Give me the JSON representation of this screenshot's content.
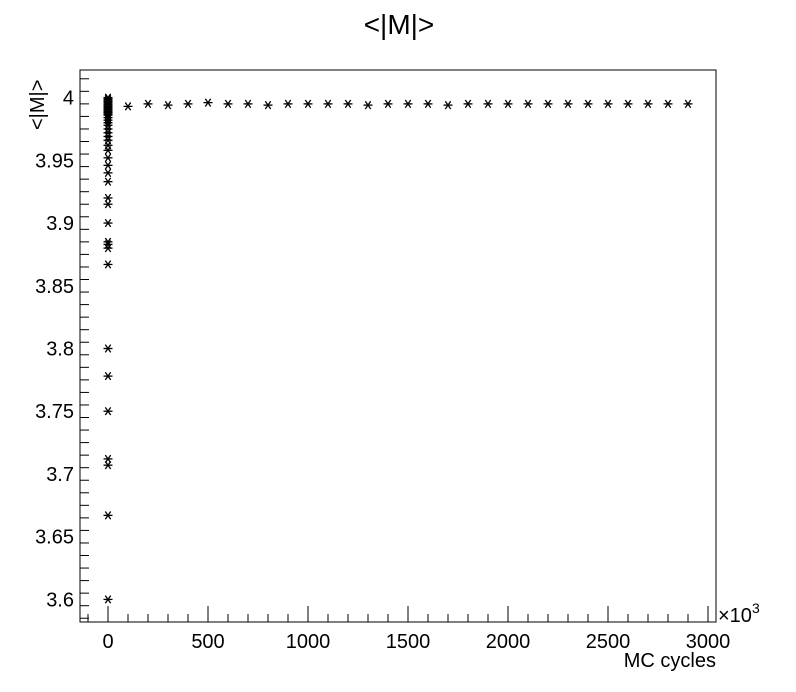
{
  "chart_data": {
    "type": "scatter",
    "title": "<|M|>",
    "xlabel": "MC cycles",
    "ylabel": "<|M|>",
    "x_multiplier_label": "×10",
    "x_multiplier_exponent": "3",
    "xlim": [
      -140,
      3040
    ],
    "ylim": [
      3.582,
      4.022
    ],
    "x_ticks": [
      0,
      500,
      1000,
      1500,
      2000,
      2500,
      3000
    ],
    "x_tick_labels": [
      "0",
      "500",
      "1000",
      "1500",
      "2000",
      "2500",
      "3000"
    ],
    "y_ticks": [
      3.6,
      3.65,
      3.7,
      3.75,
      3.8,
      3.85,
      3.9,
      3.95,
      4.0
    ],
    "y_tick_labels": [
      "3.6",
      "3.65",
      "3.7",
      "3.75",
      "3.8",
      "3.85",
      "3.9",
      "3.95",
      "4"
    ],
    "marker": "asterisk",
    "grid": false,
    "series": [
      {
        "x": [
          0,
          0,
          0,
          0,
          0,
          0,
          0,
          0,
          0,
          0,
          0,
          0,
          0,
          0,
          0,
          0,
          0,
          0,
          0,
          0,
          0,
          0,
          0,
          0,
          0,
          0,
          0,
          0,
          0,
          0,
          0,
          0,
          0,
          0,
          0,
          0,
          0,
          0,
          0,
          0,
          0,
          0,
          0,
          100,
          200,
          300,
          400,
          500,
          600,
          700,
          800,
          900,
          1000,
          1100,
          1200,
          1300,
          1400,
          1500,
          1600,
          1700,
          1800,
          1900,
          2000,
          2100,
          2200,
          2300,
          2400,
          2500,
          2600,
          2700,
          2800,
          2900
        ],
        "y": [
          3.6,
          3.667,
          3.707,
          3.712,
          3.75,
          3.778,
          3.8,
          3.867,
          3.88,
          3.883,
          3.885,
          3.9,
          3.915,
          3.92,
          3.933,
          3.94,
          3.946,
          3.952,
          3.958,
          3.962,
          3.966,
          3.969,
          3.972,
          3.975,
          3.978,
          3.98,
          3.982,
          3.984,
          3.986,
          3.987,
          3.988,
          3.989,
          3.99,
          3.991,
          3.992,
          3.993,
          3.994,
          3.995,
          3.996,
          3.997,
          3.998,
          3.999,
          4.0,
          3.993,
          3.995,
          3.994,
          3.995,
          3.996,
          3.995,
          3.995,
          3.994,
          3.995,
          3.995,
          3.995,
          3.995,
          3.994,
          3.995,
          3.995,
          3.995,
          3.994,
          3.995,
          3.995,
          3.995,
          3.995,
          3.995,
          3.995,
          3.995,
          3.995,
          3.995,
          3.995,
          3.995,
          3.995
        ]
      }
    ]
  }
}
